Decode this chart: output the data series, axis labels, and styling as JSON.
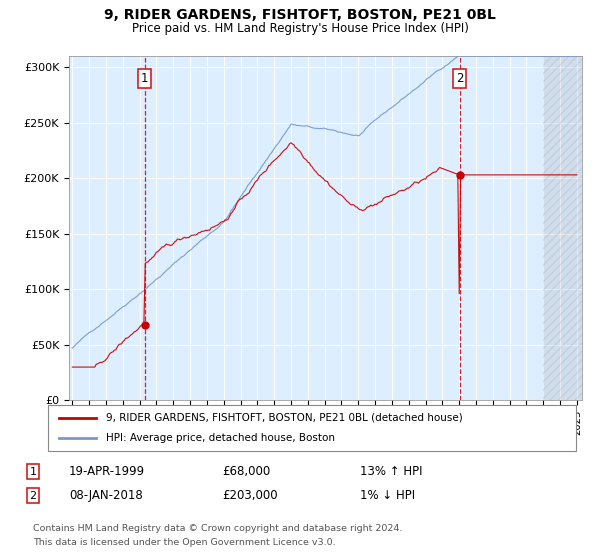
{
  "title": "9, RIDER GARDENS, FISHTOFT, BOSTON, PE21 0BL",
  "subtitle": "Price paid vs. HM Land Registry's House Price Index (HPI)",
  "y_ticks": [
    0,
    50000,
    100000,
    150000,
    200000,
    250000,
    300000
  ],
  "y_tick_labels": [
    "£0",
    "£50K",
    "£100K",
    "£150K",
    "£200K",
    "£250K",
    "£300K"
  ],
  "sale1_date": 1999.29,
  "sale1_price": 68000,
  "sale2_date": 2018.03,
  "sale2_price": 203000,
  "red_color": "#cc0000",
  "blue_color": "#7799cc",
  "bg_color": "#ddeeff",
  "hatch_color": "#bbccdd",
  "legend_line1": "9, RIDER GARDENS, FISHTOFT, BOSTON, PE21 0BL (detached house)",
  "legend_line2": "HPI: Average price, detached house, Boston",
  "sale1_text": "19-APR-1999",
  "sale1_amount": "£68,000",
  "sale1_hpi": "13% ↑ HPI",
  "sale2_text": "08-JAN-2018",
  "sale2_amount": "£203,000",
  "sale2_hpi": "1% ↓ HPI",
  "footnote_line1": "Contains HM Land Registry data © Crown copyright and database right 2024.",
  "footnote_line2": "This data is licensed under the Open Government Licence v3.0."
}
